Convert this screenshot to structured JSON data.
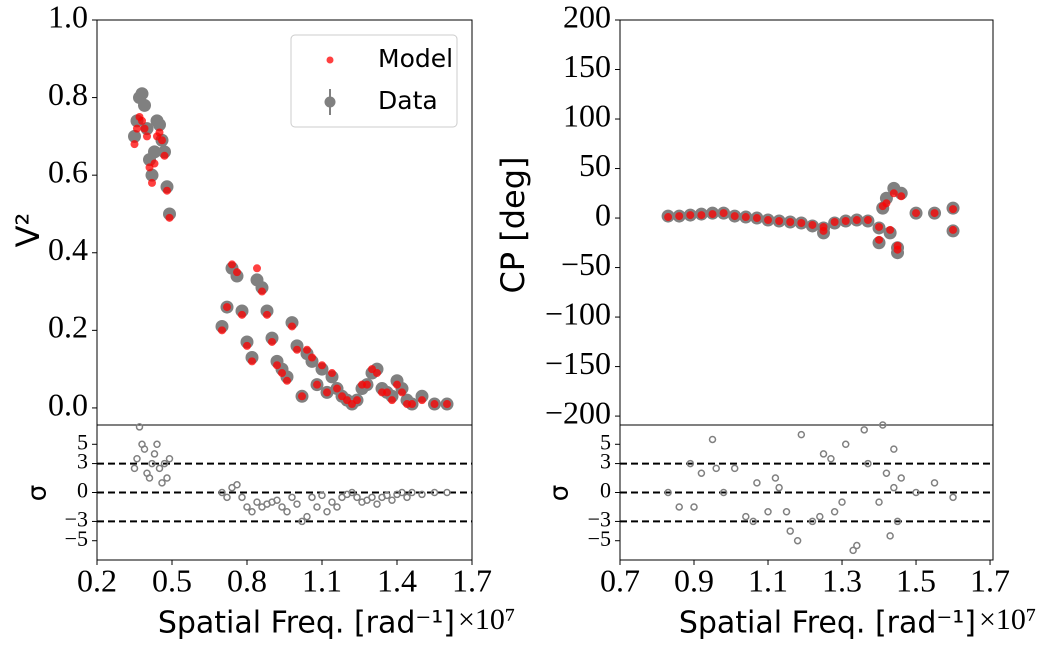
{
  "chart_data": [
    {
      "type": "scatter",
      "ylabel": "V²",
      "xlim": [
        0.2,
        1.7
      ],
      "ylim": [
        -0.044,
        1.0
      ],
      "yticks": [
        {
          "value": 0,
          "label": "0.0"
        },
        0.2,
        0.4,
        0.6,
        0.8,
        {
          "value": 1,
          "label": "1.0"
        }
      ],
      "legend": "upper right",
      "x": [
        0.35,
        0.36,
        0.37,
        0.38,
        0.39,
        0.4,
        0.41,
        0.42,
        0.43,
        0.44,
        0.45,
        0.46,
        0.47,
        0.48,
        0.49,
        0.7,
        0.72,
        0.74,
        0.76,
        0.78,
        0.8,
        0.82,
        0.84,
        0.86,
        0.88,
        0.9,
        0.92,
        0.94,
        0.96,
        0.98,
        1.0,
        1.02,
        1.04,
        1.06,
        1.08,
        1.1,
        1.12,
        1.14,
        1.16,
        1.18,
        1.2,
        1.22,
        1.24,
        1.26,
        1.28,
        1.3,
        1.32,
        1.34,
        1.36,
        1.38,
        1.4,
        1.42,
        1.44,
        1.46,
        1.5,
        1.55,
        1.6
      ],
      "series": [
        {
          "name": "Data",
          "color": "#808080",
          "values": [
            0.7,
            0.74,
            0.8,
            0.81,
            0.78,
            0.72,
            0.64,
            0.6,
            0.66,
            0.74,
            0.73,
            0.69,
            0.66,
            0.57,
            0.5,
            0.21,
            0.26,
            0.36,
            0.34,
            0.25,
            0.17,
            0.13,
            0.33,
            0.31,
            0.25,
            0.18,
            0.12,
            0.1,
            0.08,
            0.22,
            0.16,
            0.03,
            0.14,
            0.12,
            0.06,
            0.1,
            0.04,
            0.08,
            0.05,
            0.03,
            0.02,
            0.01,
            0.02,
            0.05,
            0.06,
            0.09,
            0.1,
            0.05,
            0.04,
            0.03,
            0.07,
            0.05,
            0.02,
            0.01,
            0.03,
            0.01,
            0.01
          ]
        },
        {
          "name": "Model",
          "color": "#ff0000",
          "values": [
            0.68,
            0.72,
            0.75,
            0.74,
            0.72,
            0.7,
            0.62,
            0.58,
            0.63,
            0.7,
            0.71,
            0.69,
            0.65,
            0.56,
            0.49,
            0.2,
            0.26,
            0.37,
            0.35,
            0.24,
            0.16,
            0.12,
            0.36,
            0.3,
            0.24,
            0.17,
            0.11,
            0.09,
            0.07,
            0.21,
            0.15,
            0.03,
            0.15,
            0.13,
            0.06,
            0.11,
            0.04,
            0.09,
            0.05,
            0.03,
            0.02,
            0.01,
            0.02,
            0.06,
            0.06,
            0.1,
            0.09,
            0.04,
            0.04,
            0.02,
            0.06,
            0.04,
            0.01,
            0.01,
            0.02,
            0.01,
            0.01
          ]
        }
      ]
    },
    {
      "type": "scatter",
      "ylabel": "σ",
      "xlabel": "Spatial Freq. [rad⁻¹]",
      "x_offset": "×10⁷",
      "xlim": [
        0.2,
        1.7
      ],
      "xticks": [
        0.2,
        0.5,
        0.8,
        1.1,
        1.4,
        1.7
      ],
      "ylim": [
        -7,
        7
      ],
      "yticks": [
        {
          "value": -5,
          "label": "−5"
        },
        {
          "value": -3,
          "label": "−3"
        },
        0,
        3,
        5
      ],
      "reference_lines": [
        -3,
        0,
        3
      ],
      "hollow": true,
      "color": "#808080",
      "x": [
        0.35,
        0.36,
        0.37,
        0.38,
        0.39,
        0.4,
        0.41,
        0.42,
        0.43,
        0.44,
        0.45,
        0.46,
        0.47,
        0.48,
        0.49,
        0.7,
        0.72,
        0.74,
        0.76,
        0.78,
        0.8,
        0.82,
        0.84,
        0.86,
        0.88,
        0.9,
        0.92,
        0.94,
        0.96,
        0.98,
        1.0,
        1.02,
        1.04,
        1.06,
        1.08,
        1.1,
        1.12,
        1.14,
        1.16,
        1.18,
        1.2,
        1.22,
        1.24,
        1.26,
        1.28,
        1.3,
        1.32,
        1.34,
        1.36,
        1.38,
        1.4,
        1.42,
        1.44,
        1.46,
        1.5,
        1.55,
        1.6
      ],
      "values": [
        2.5,
        3.5,
        6.8,
        5.0,
        4.5,
        2.0,
        1.5,
        3.0,
        4.0,
        5.0,
        2.5,
        1.0,
        3.0,
        1.5,
        3.5,
        0,
        -0.5,
        0.5,
        0.8,
        -0.5,
        -1.5,
        -2.0,
        -1.0,
        -1.5,
        -1.2,
        -1.0,
        -0.8,
        -1.5,
        -2.0,
        -0.5,
        -1.2,
        -3.0,
        -2.5,
        -0.5,
        -1.5,
        -0.3,
        -2.0,
        -1.0,
        -1.5,
        -0.5,
        -0.2,
        0,
        -0.5,
        -1.0,
        -0.8,
        -0.5,
        -1.2,
        -0.5,
        -0.3,
        -0.8,
        -0.2,
        0,
        -0.5,
        0,
        -0.2,
        0,
        0
      ]
    },
    {
      "type": "scatter",
      "ylabel": "CP [deg]",
      "xlim": [
        0.7,
        1.708
      ],
      "ylim": [
        -209,
        200
      ],
      "yticks": [
        {
          "value": -200,
          "label": "−200"
        },
        {
          "value": -150,
          "label": "−150"
        },
        {
          "value": -100,
          "label": "−100"
        },
        {
          "value": -50,
          "label": "−50"
        },
        0,
        50,
        100,
        150,
        200
      ],
      "x": [
        0.83,
        0.86,
        0.89,
        0.92,
        0.95,
        0.98,
        1.01,
        1.04,
        1.07,
        1.1,
        1.13,
        1.16,
        1.19,
        1.22,
        1.25,
        1.28,
        1.31,
        1.34,
        1.37,
        1.4,
        1.41,
        1.42,
        1.43,
        1.44,
        1.45,
        1.46,
        1.5,
        1.55,
        1.6,
        1.6,
        1.25,
        1.4,
        1.45
      ],
      "series": [
        {
          "color": "#808080",
          "values": [
            2,
            2,
            3,
            4,
            5,
            5,
            2,
            1,
            0,
            -2,
            -3,
            -4,
            -5,
            -8,
            -10,
            -5,
            -3,
            -2,
            -3,
            -10,
            10,
            20,
            -15,
            30,
            -35,
            25,
            5,
            5,
            10,
            -13,
            -15,
            -25,
            -30
          ]
        },
        {
          "color": "#ff0000",
          "values": [
            1,
            2,
            3,
            3,
            4,
            5,
            2,
            1,
            0,
            -2,
            -3,
            -4,
            -5,
            -7,
            -9,
            -4,
            -3,
            -2,
            -2,
            -9,
            12,
            15,
            -12,
            25,
            -32,
            22,
            5,
            5,
            9,
            -12,
            -13,
            -22,
            -28
          ]
        }
      ]
    },
    {
      "type": "scatter",
      "ylabel": "σ",
      "xlabel": "Spatial Freq. [rad⁻¹]",
      "x_offset": "×10⁷",
      "xlim": [
        0.7,
        1.708
      ],
      "xticks": [
        0.7,
        0.9,
        1.1,
        1.3,
        1.5,
        1.7
      ],
      "ylim": [
        -7,
        7
      ],
      "yticks": [
        {
          "value": -5,
          "label": "−5"
        },
        {
          "value": -3,
          "label": "−3"
        },
        0,
        3,
        5
      ],
      "reference_lines": [
        -3,
        0,
        3
      ],
      "hollow": true,
      "color": "#808080",
      "x": [
        0.83,
        0.86,
        0.89,
        0.92,
        0.95,
        0.98,
        1.01,
        1.04,
        1.07,
        1.1,
        1.13,
        1.16,
        1.19,
        1.22,
        1.25,
        1.28,
        1.31,
        1.34,
        1.37,
        1.4,
        1.41,
        1.42,
        1.43,
        1.44,
        1.45,
        1.46,
        1.5,
        1.55,
        1.6,
        0.9,
        0.96,
        1.06,
        1.12,
        1.18,
        1.24,
        1.3,
        1.36,
        1.44,
        1.15,
        1.27,
        1.33
      ],
      "values": [
        0,
        -1.5,
        3.0,
        2.0,
        5.5,
        0,
        2.5,
        -2.5,
        1.0,
        -2.0,
        0.5,
        -4.0,
        6.0,
        -3.0,
        4.0,
        -2.0,
        5.0,
        -5.5,
        3.0,
        -1.0,
        7.0,
        2.0,
        -4.5,
        4.5,
        -3.0,
        1.5,
        0,
        1.0,
        -0.5,
        -1.5,
        2.5,
        -3.0,
        1.5,
        -5.0,
        -2.5,
        -1.0,
        6.5,
        0.5,
        -2.0,
        3.5,
        -6.0
      ]
    }
  ]
}
